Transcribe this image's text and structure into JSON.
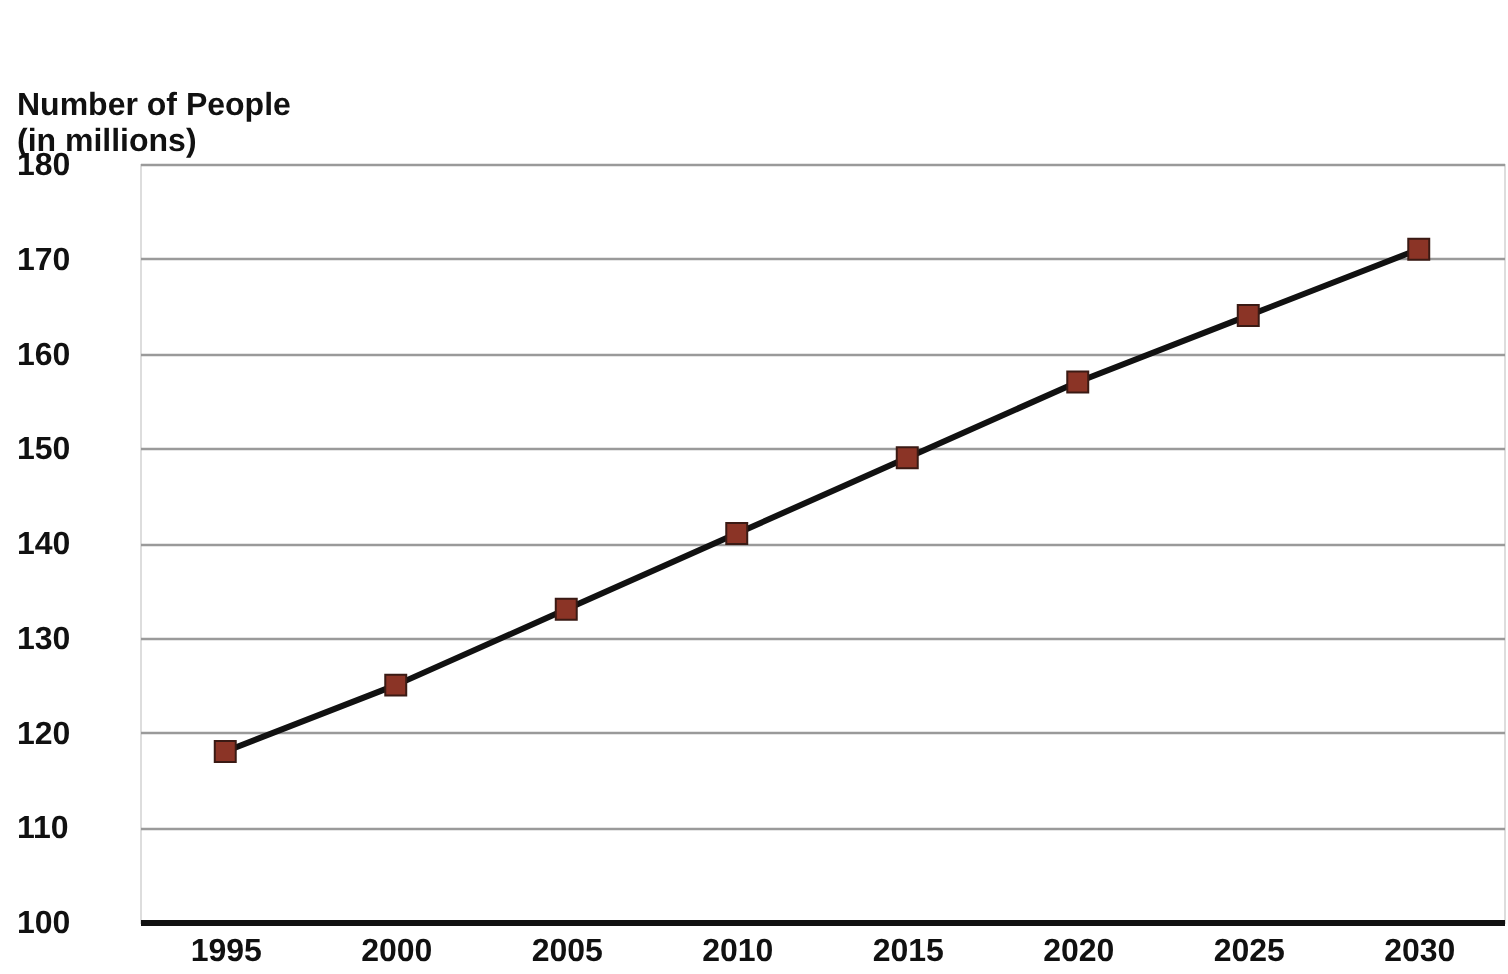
{
  "chart_data": {
    "type": "line",
    "ylabel": "Number of People\n(in millions)",
    "categories": [
      "1995",
      "2000",
      "2005",
      "2010",
      "2015",
      "2020",
      "2025",
      "2030"
    ],
    "series": [
      {
        "color": "#111111",
        "values": [
          118,
          125,
          133,
          141,
          149,
          157,
          164,
          171
        ]
      }
    ],
    "ylim": [
      100,
      180
    ],
    "yticks": [
      100,
      110,
      120,
      130,
      140,
      150,
      160,
      170,
      180
    ],
    "grid": "y",
    "marker": "square",
    "line_style": "solid"
  }
}
